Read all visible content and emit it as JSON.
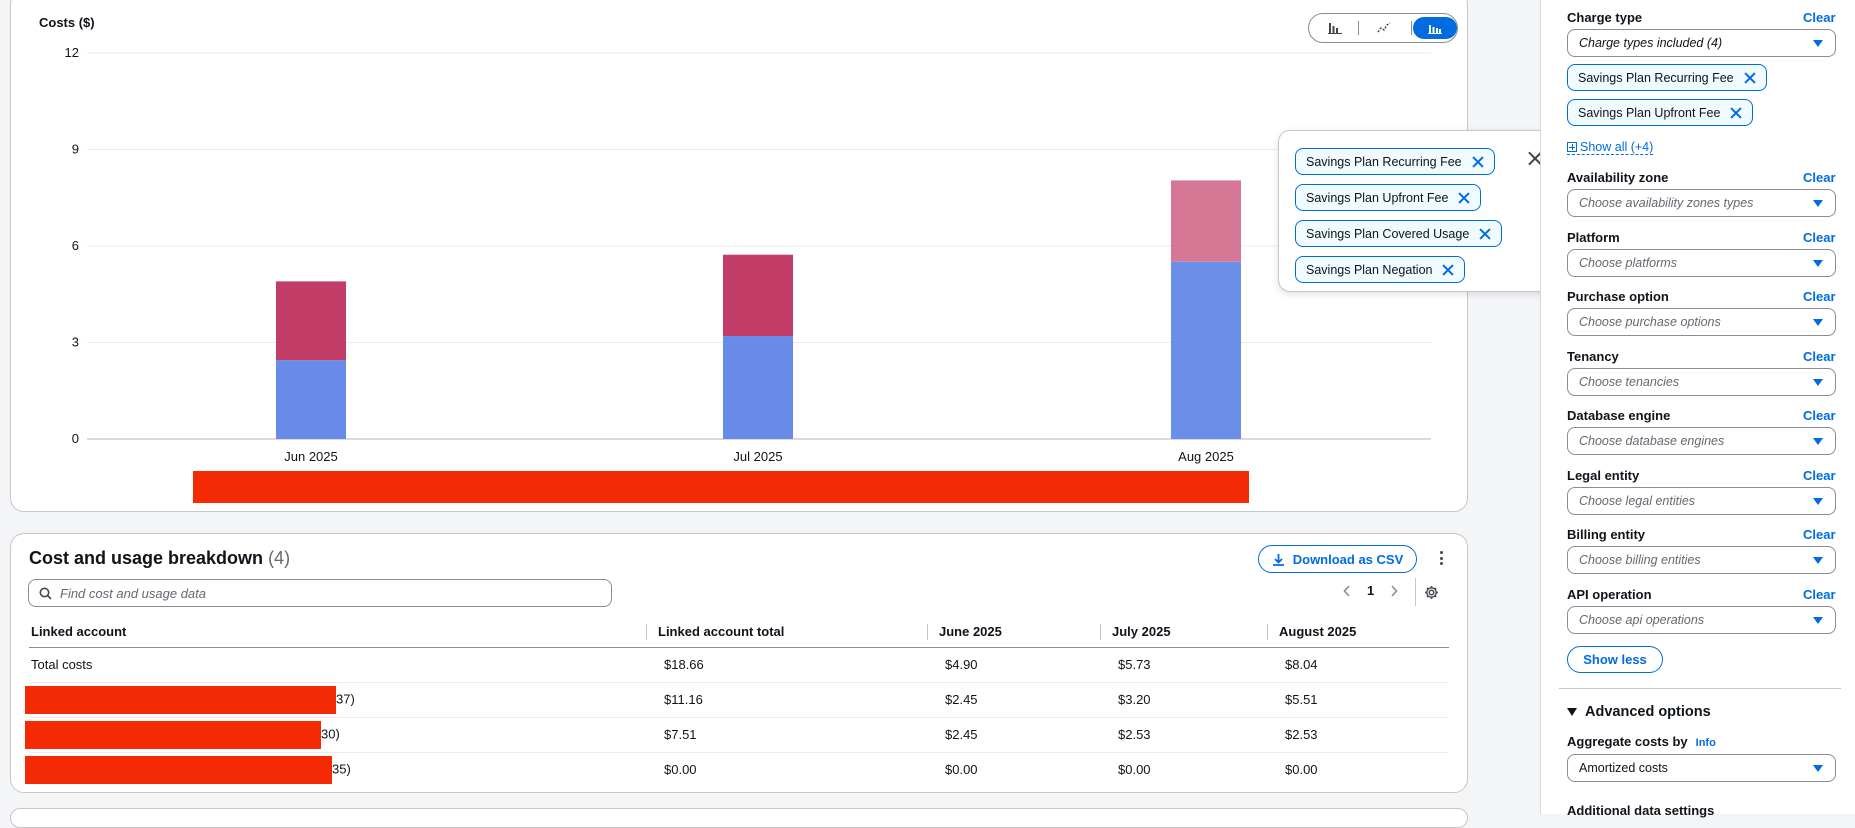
{
  "chart": {
    "y_axis_title": "Costs ($)",
    "toggle": {
      "bar_icon": "bar-chart-icon",
      "line_icon": "line-chart-icon",
      "stacked_icon": "stacked-bar-icon",
      "active": "stacked"
    }
  },
  "chart_data": {
    "type": "bar",
    "stacked": true,
    "categories": [
      "Jun 2025",
      "Jul 2025",
      "Aug 2025"
    ],
    "series": [
      {
        "values": [
          2.45,
          3.2,
          5.51
        ],
        "color": "#688ae8"
      },
      {
        "values": [
          2.45,
          2.53,
          2.53
        ],
        "color": "#c33d69"
      }
    ],
    "ylabel": "Costs ($)",
    "ylim": [
      0,
      12
    ],
    "yticks": [
      0,
      3,
      6,
      9,
      12
    ],
    "grid": true
  },
  "colors": {
    "accent": "#006ce0",
    "series_blue": "#688ae8",
    "series_red": "#c33d69",
    "series_red_light": "#d57795",
    "redaction": "#f42a05"
  },
  "popover": {
    "tokens": [
      "Savings Plan Recurring Fee",
      "Savings Plan Upfront Fee",
      "Savings Plan Covered Usage",
      "Savings Plan Negation"
    ]
  },
  "breakdown": {
    "title": "Cost and usage breakdown",
    "count": "(4)",
    "download_label": "Download as CSV",
    "search_placeholder": "Find cost and usage data",
    "page": "1",
    "columns": [
      "Linked account",
      "Linked account total",
      "June 2025",
      "July 2025",
      "August 2025"
    ],
    "rows": [
      {
        "account": "Total costs",
        "total": "$18.66",
        "jun": "$4.90",
        "jul": "$5.73",
        "aug": "$8.04"
      },
      {
        "account_suffix": "37)",
        "total": "$11.16",
        "jun": "$2.45",
        "jul": "$3.20",
        "aug": "$5.51"
      },
      {
        "account_suffix": "30)",
        "total": "$7.51",
        "jun": "$2.45",
        "jul": "$2.53",
        "aug": "$2.53"
      },
      {
        "account_suffix": "35)",
        "total": "$0.00",
        "jun": "$0.00",
        "jul": "$0.00",
        "aug": "$0.00"
      }
    ]
  },
  "filters": {
    "clear_label": "Clear",
    "charge_type": {
      "label": "Charge type",
      "value": "Charge types included (4)",
      "tokens": [
        "Savings Plan Recurring Fee",
        "Savings Plan Upfront Fee"
      ],
      "show_all": "Show all (+4)"
    },
    "availability_zone": {
      "label": "Availability zone",
      "placeholder": "Choose availability zones types"
    },
    "platform": {
      "label": "Platform",
      "placeholder": "Choose platforms"
    },
    "purchase_option": {
      "label": "Purchase option",
      "placeholder": "Choose purchase options"
    },
    "tenancy": {
      "label": "Tenancy",
      "placeholder": "Choose tenancies"
    },
    "database_engine": {
      "label": "Database engine",
      "placeholder": "Choose database engines"
    },
    "legal_entity": {
      "label": "Legal entity",
      "placeholder": "Choose legal entities"
    },
    "billing_entity": {
      "label": "Billing entity",
      "placeholder": "Choose billing entities"
    },
    "api_operation": {
      "label": "API operation",
      "placeholder": "Choose api operations"
    },
    "show_less": "Show less",
    "advanced_options": "Advanced options",
    "aggregate_label": "Aggregate costs by",
    "info": "Info",
    "aggregate_value": "Amortized costs",
    "additional_settings": "Additional data settings"
  }
}
